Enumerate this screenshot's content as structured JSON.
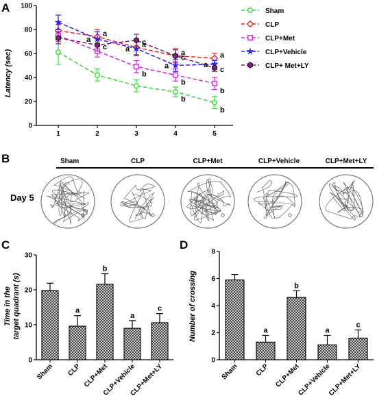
{
  "panels": {
    "A": "A",
    "B": "B",
    "C": "C",
    "D": "D"
  },
  "chart_data": [
    {
      "panel": "A",
      "type": "line",
      "ylabel": "Latency (sec)",
      "x": [
        1,
        2,
        3,
        4,
        5
      ],
      "ylim": [
        0,
        100
      ],
      "yticks": [
        0,
        20,
        40,
        60,
        80,
        100
      ],
      "series": [
        {
          "name": "Sham",
          "color": "#33dd33",
          "marker": "circle",
          "values": [
            61,
            42,
            33,
            28,
            19
          ],
          "errors": [
            10,
            5,
            5,
            4,
            5
          ],
          "sig": [
            "",
            "",
            "",
            "b",
            "b"
          ]
        },
        {
          "name": "CLP",
          "color": "#ee2222",
          "marker": "diamond",
          "values": [
            79,
            74,
            65,
            58,
            56
          ],
          "errors": [
            5,
            6,
            6,
            6,
            4
          ],
          "sig": [
            "",
            "a",
            "a",
            "a",
            "a"
          ]
        },
        {
          "name": "CLP+Met",
          "color": "#dd22dd",
          "marker": "square",
          "values": [
            75,
            62,
            49,
            42,
            35
          ],
          "errors": [
            5,
            5,
            5,
            5,
            5
          ],
          "sig": [
            "",
            "",
            "b",
            "b",
            "b"
          ]
        },
        {
          "name": "CLP+Vehicle",
          "color": "#2222ee",
          "marker": "star",
          "values": [
            86,
            72,
            64,
            50,
            51
          ],
          "errors": [
            6,
            6,
            6,
            5,
            3
          ],
          "sig": [
            "",
            "a",
            "a",
            "a",
            "a"
          ]
        },
        {
          "name": "CLP+ Met+LY",
          "color": "#772277",
          "marker": "hexagon",
          "values": [
            73,
            67,
            71,
            58,
            48
          ],
          "errors": [
            5,
            5,
            5,
            5,
            3
          ],
          "sig": [
            "",
            "c",
            "c",
            "c",
            "c"
          ]
        }
      ]
    },
    {
      "panel": "C",
      "type": "bar",
      "ylabel": "Time in the target quadrant (s)",
      "ylabel_lines": [
        "Time in the",
        "target quadrant (s)"
      ],
      "categories": [
        "Sham",
        "CLP",
        "CLP+Met",
        "CLP+Vehicle",
        "CLP+Met+LY"
      ],
      "values": [
        19.8,
        9.6,
        21.6,
        9.0,
        10.6
      ],
      "errors": [
        2.1,
        3.0,
        3.0,
        2.2,
        2.6
      ],
      "sig": [
        "",
        "a",
        "b",
        "a",
        "c"
      ],
      "ylim": [
        0,
        30
      ],
      "yticks": [
        0,
        10,
        20,
        30
      ]
    },
    {
      "panel": "D",
      "type": "bar",
      "ylabel": "Number of crossing",
      "categories": [
        "Sham",
        "CLP",
        "CLP+Met",
        "CLP+Vehicle",
        "CLP+Met+LY"
      ],
      "values": [
        5.9,
        1.3,
        4.6,
        1.1,
        1.6
      ],
      "errors": [
        0.4,
        0.5,
        0.5,
        0.7,
        0.6
      ],
      "sig": [
        "",
        "a",
        "b",
        "a",
        "c"
      ],
      "ylim": [
        0,
        8
      ],
      "yticks": [
        0,
        2,
        4,
        6,
        8
      ]
    }
  ],
  "tracks": {
    "day_label": "Day 5",
    "groups": [
      "Sham",
      "CLP",
      "CLP+Met",
      "CLP+Vehicle",
      "CLP+Met+LY"
    ]
  }
}
